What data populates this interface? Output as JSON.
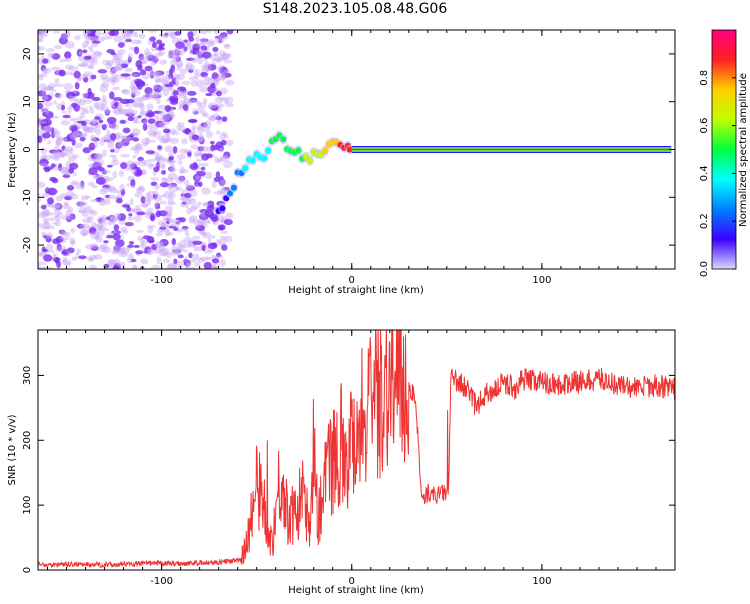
{
  "title": "S148.2023.105.08.48.G06",
  "colors": {
    "snr_line": "#ee3333",
    "noise": "#7a2cf0",
    "noise_light": "#c7a6f6",
    "colormap": [
      "#d8d8ff",
      "#3a00ff",
      "#0080ff",
      "#00ffff",
      "#00ff40",
      "#c0ff00",
      "#ffd000",
      "#ff2020",
      "#ff0080"
    ]
  },
  "chart_data": [
    {
      "type": "heatmap",
      "xlabel": "Height of straight line (km)",
      "ylabel": "Frequency (Hz)",
      "xlim": [
        -165,
        170
      ],
      "ylim": [
        -25,
        25
      ],
      "xticks": [
        -100,
        0,
        100
      ],
      "yticks": [
        -20,
        -10,
        0,
        10,
        20
      ],
      "colorbar": {
        "label": "Normalized spectral amplitude",
        "range": [
          0,
          1
        ],
        "ticks": [
          "0.0",
          "0.2",
          "0.4",
          "0.6",
          "0.8"
        ]
      },
      "ridge": {
        "x": [
          -70,
          -64,
          -58,
          -52,
          -46,
          -42,
          -38,
          -34,
          -30,
          -26,
          -22,
          -18,
          -14,
          -10,
          -6,
          -2,
          0,
          10,
          30,
          60,
          100,
          140,
          168
        ],
        "y": [
          -13,
          -9,
          -4,
          -2,
          -1,
          1,
          2,
          1,
          0,
          -1,
          -2,
          -1,
          0,
          1,
          1,
          0,
          0,
          0,
          0,
          0,
          0,
          0,
          0
        ],
        "amplitude": [
          0.15,
          0.2,
          0.3,
          0.35,
          0.4,
          0.45,
          0.5,
          0.5,
          0.5,
          0.55,
          0.6,
          0.65,
          0.7,
          0.75,
          0.85,
          0.9,
          0.92,
          0.95,
          0.95,
          0.95,
          0.95,
          0.95,
          0.95
        ]
      },
      "noise_region_x": [
        -165,
        -70
      ]
    },
    {
      "type": "line",
      "xlabel": "Height of straight line (km)",
      "ylabel": "SNR (10 * v/v)",
      "xlim": [
        -165,
        170
      ],
      "ylim": [
        0,
        370
      ],
      "xticks": [
        -100,
        0,
        100
      ],
      "yticks": [
        0,
        100,
        200,
        300
      ],
      "series": [
        {
          "x": [
            -165,
            -150,
            -130,
            -110,
            -90,
            -70,
            -58,
            -54,
            -50,
            -46,
            -42,
            -38,
            -34,
            -30,
            -26,
            -22,
            -20,
            -18,
            -14,
            -10,
            -6,
            -2,
            2,
            6,
            10,
            14,
            18,
            22,
            26,
            30,
            33,
            35,
            37,
            40,
            44,
            48,
            51,
            52,
            56,
            60,
            66,
            70,
            76,
            80,
            86,
            90,
            100,
            110,
            120,
            130,
            140,
            150,
            160,
            170
          ],
          "y": [
            8,
            9,
            8,
            10,
            10,
            12,
            15,
            60,
            130,
            100,
            40,
            140,
            90,
            80,
            120,
            60,
            220,
            70,
            150,
            170,
            200,
            180,
            220,
            240,
            250,
            270,
            295,
            280,
            285,
            280,
            270,
            200,
            100,
            120,
            115,
            118,
            120,
            295,
            290,
            280,
            250,
            270,
            280,
            290,
            280,
            295,
            290,
            285,
            290,
            295,
            285,
            280,
            285,
            280
          ]
        }
      ]
    }
  ]
}
